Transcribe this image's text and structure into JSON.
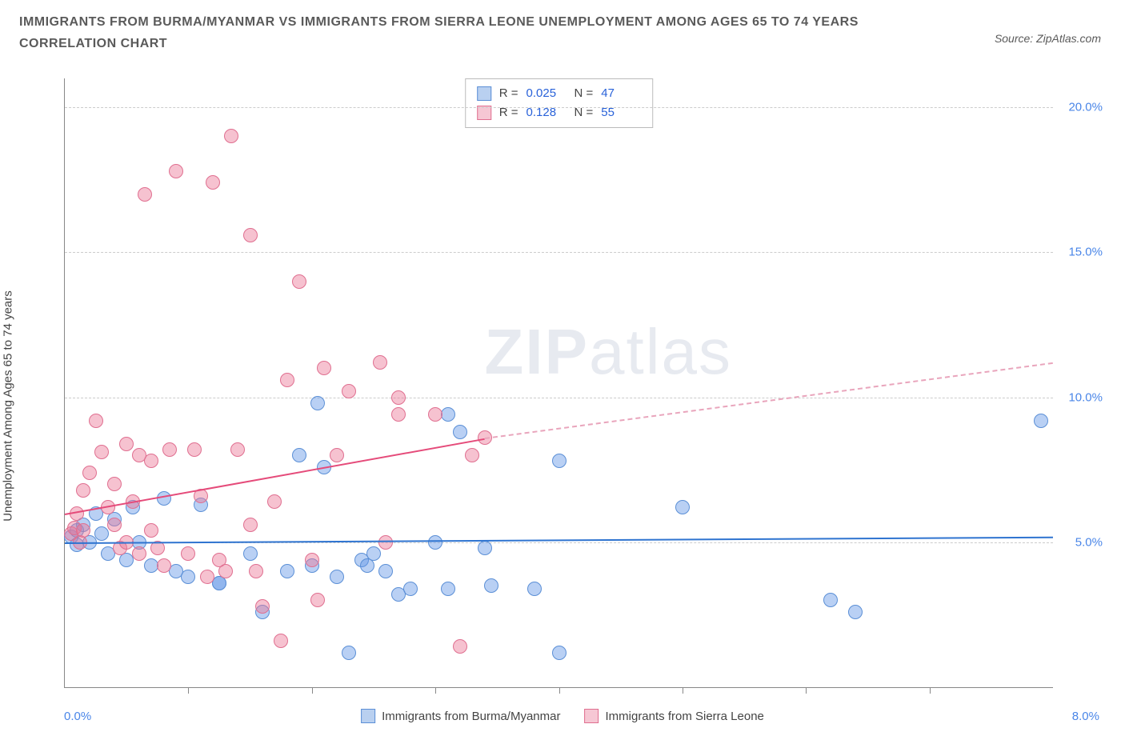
{
  "title_line1": "IMMIGRANTS FROM BURMA/MYANMAR VS IMMIGRANTS FROM SIERRA LEONE UNEMPLOYMENT AMONG AGES 65 TO 74 YEARS",
  "title_line2": "CORRELATION CHART",
  "source_label": "Source: ZipAtlas.com",
  "ylabel": "Unemployment Among Ages 65 to 74 years",
  "watermark_bold": "ZIP",
  "watermark_light": "atlas",
  "chart": {
    "type": "scatter",
    "xlim": [
      0,
      8
    ],
    "ylim": [
      0,
      21
    ],
    "x_tick_labels": {
      "min": "0.0%",
      "max": "8.0%"
    },
    "x_minor_tick_positions": [
      1,
      2,
      3,
      4,
      5,
      6,
      7
    ],
    "y_gridlines": [
      5,
      10,
      15,
      20
    ],
    "y_tick_labels": [
      "5.0%",
      "10.0%",
      "15.0%",
      "20.0%"
    ],
    "background_color": "#ffffff",
    "grid_color": "#cccccc",
    "axis_color": "#888888",
    "tick_label_color": "#4a86e8",
    "marker_radius": 9,
    "marker_opacity": 0.55,
    "series": [
      {
        "name": "Immigrants from Burma/Myanmar",
        "color_fill": "rgba(100,150,230,0.45)",
        "color_stroke": "#5b8fd6",
        "swatch_fill": "#b9d0f0",
        "swatch_border": "#5b8fd6",
        "R": "0.025",
        "N": "47",
        "trend": {
          "x1": 0.0,
          "y1": 5.0,
          "x2": 8.0,
          "y2": 5.2,
          "color": "#2f74d0"
        },
        "points": [
          [
            0.05,
            5.2
          ],
          [
            0.1,
            5.4
          ],
          [
            0.1,
            4.9
          ],
          [
            0.15,
            5.6
          ],
          [
            0.2,
            5.0
          ],
          [
            0.25,
            6.0
          ],
          [
            0.3,
            5.3
          ],
          [
            0.35,
            4.6
          ],
          [
            0.4,
            5.8
          ],
          [
            0.5,
            4.4
          ],
          [
            0.55,
            6.2
          ],
          [
            0.6,
            5.0
          ],
          [
            0.7,
            4.2
          ],
          [
            0.8,
            6.5
          ],
          [
            0.9,
            4.0
          ],
          [
            1.0,
            3.8
          ],
          [
            1.1,
            6.3
          ],
          [
            1.25,
            3.6
          ],
          [
            1.25,
            3.6
          ],
          [
            1.5,
            4.6
          ],
          [
            1.6,
            2.6
          ],
          [
            1.8,
            4.0
          ],
          [
            1.9,
            8.0
          ],
          [
            2.0,
            4.2
          ],
          [
            2.05,
            9.8
          ],
          [
            2.1,
            7.6
          ],
          [
            2.2,
            3.8
          ],
          [
            2.3,
            1.2
          ],
          [
            2.4,
            4.4
          ],
          [
            2.45,
            4.2
          ],
          [
            2.5,
            4.6
          ],
          [
            2.6,
            4.0
          ],
          [
            2.7,
            3.2
          ],
          [
            2.8,
            3.4
          ],
          [
            3.0,
            5.0
          ],
          [
            3.1,
            3.4
          ],
          [
            3.1,
            9.4
          ],
          [
            3.2,
            8.8
          ],
          [
            3.4,
            4.8
          ],
          [
            3.45,
            3.5
          ],
          [
            3.8,
            3.4
          ],
          [
            4.0,
            1.2
          ],
          [
            4.0,
            7.8
          ],
          [
            5.0,
            6.2
          ],
          [
            6.2,
            3.0
          ],
          [
            6.4,
            2.6
          ],
          [
            7.9,
            9.2
          ]
        ]
      },
      {
        "name": "Immigrants from Sierra Leone",
        "color_fill": "rgba(235,120,150,0.45)",
        "color_stroke": "#e06f90",
        "swatch_fill": "#f6c7d4",
        "swatch_border": "#e06f90",
        "R": "0.128",
        "N": "55",
        "trend": {
          "x1": 0.0,
          "y1": 6.0,
          "x2": 3.4,
          "y2": 8.6,
          "color": "#e54b7a"
        },
        "trend_extend": {
          "x1": 3.4,
          "y1": 8.6,
          "x2": 8.0,
          "y2": 11.2,
          "color": "#e9a5bc"
        },
        "points": [
          [
            0.05,
            5.3
          ],
          [
            0.08,
            5.5
          ],
          [
            0.1,
            6.0
          ],
          [
            0.12,
            5.0
          ],
          [
            0.15,
            5.4
          ],
          [
            0.15,
            6.8
          ],
          [
            0.2,
            7.4
          ],
          [
            0.25,
            9.2
          ],
          [
            0.3,
            8.1
          ],
          [
            0.35,
            6.2
          ],
          [
            0.4,
            5.6
          ],
          [
            0.4,
            7.0
          ],
          [
            0.45,
            4.8
          ],
          [
            0.5,
            8.4
          ],
          [
            0.5,
            5.0
          ],
          [
            0.55,
            6.4
          ],
          [
            0.6,
            4.6
          ],
          [
            0.6,
            8.0
          ],
          [
            0.65,
            17.0
          ],
          [
            0.7,
            5.4
          ],
          [
            0.7,
            7.8
          ],
          [
            0.75,
            4.8
          ],
          [
            0.8,
            4.2
          ],
          [
            0.85,
            8.2
          ],
          [
            0.9,
            17.8
          ],
          [
            1.0,
            4.6
          ],
          [
            1.05,
            8.2
          ],
          [
            1.1,
            6.6
          ],
          [
            1.15,
            3.8
          ],
          [
            1.2,
            17.4
          ],
          [
            1.25,
            4.4
          ],
          [
            1.3,
            4.0
          ],
          [
            1.35,
            19.0
          ],
          [
            1.4,
            8.2
          ],
          [
            1.5,
            5.6
          ],
          [
            1.5,
            15.6
          ],
          [
            1.55,
            4.0
          ],
          [
            1.6,
            2.8
          ],
          [
            1.7,
            6.4
          ],
          [
            1.75,
            1.6
          ],
          [
            1.8,
            10.6
          ],
          [
            1.9,
            14.0
          ],
          [
            2.0,
            4.4
          ],
          [
            2.05,
            3.0
          ],
          [
            2.1,
            11.0
          ],
          [
            2.2,
            8.0
          ],
          [
            2.3,
            10.2
          ],
          [
            2.55,
            11.2
          ],
          [
            2.6,
            5.0
          ],
          [
            2.7,
            10.0
          ],
          [
            2.7,
            9.4
          ],
          [
            3.0,
            9.4
          ],
          [
            3.2,
            1.4
          ],
          [
            3.3,
            8.0
          ],
          [
            3.4,
            8.6
          ]
        ]
      }
    ]
  },
  "legend": {
    "r_label": "R =",
    "n_label": "N ="
  }
}
